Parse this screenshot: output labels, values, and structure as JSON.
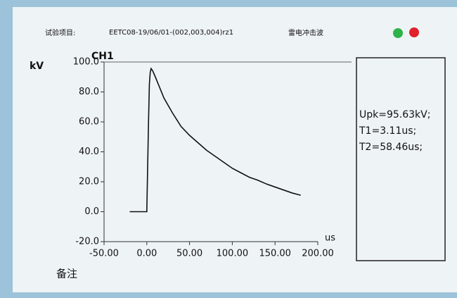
{
  "header": {
    "item_label": "试验项目:",
    "item_value": "EETC08-19/06/01-(002,003,004)rz1",
    "wave_type": "雷电冲击波"
  },
  "chart_data": {
    "type": "line",
    "title": "CH1",
    "y_label": "kV",
    "x_label": "us",
    "x": [
      -20,
      -10,
      -1,
      0,
      1,
      2,
      3,
      4,
      5,
      7,
      10,
      15,
      20,
      30,
      40,
      50,
      60,
      70,
      80,
      90,
      100,
      110,
      120,
      130,
      140,
      150,
      160,
      170,
      180
    ],
    "series": [
      {
        "name": "CH1",
        "color": "#111111",
        "values": [
          0,
          0,
          0,
          0,
          30,
          60,
          85,
          93,
          95.6,
          94,
          90,
          83,
          76,
          66,
          57,
          51,
          46,
          41,
          37,
          33,
          29,
          26,
          23,
          21,
          18.5,
          16.5,
          14.5,
          12.5,
          11
        ]
      }
    ],
    "xlim": [
      -50,
      200
    ],
    "ylim": [
      -20,
      100
    ],
    "xticks": [
      {
        "value": -50,
        "label": "-50.00"
      },
      {
        "value": 0,
        "label": "0.00"
      },
      {
        "value": 50,
        "label": "50.00"
      },
      {
        "value": 100,
        "label": "100.00"
      },
      {
        "value": 150,
        "label": "150.00"
      },
      {
        "value": 200,
        "label": "200.00"
      }
    ],
    "yticks": [
      {
        "value": 100,
        "label": "100.0"
      },
      {
        "value": 80,
        "label": "80.0"
      },
      {
        "value": 60,
        "label": "60.0"
      },
      {
        "value": 40,
        "label": "40.0"
      },
      {
        "value": 20,
        "label": "20.0"
      },
      {
        "value": 0,
        "label": "0.0"
      },
      {
        "value": -20,
        "label": "-20.0"
      }
    ]
  },
  "results": [
    "Upk=95.63kV;",
    "T1=3.11us;",
    "T2=58.46us;"
  ],
  "footer": {
    "remark": "备注"
  }
}
